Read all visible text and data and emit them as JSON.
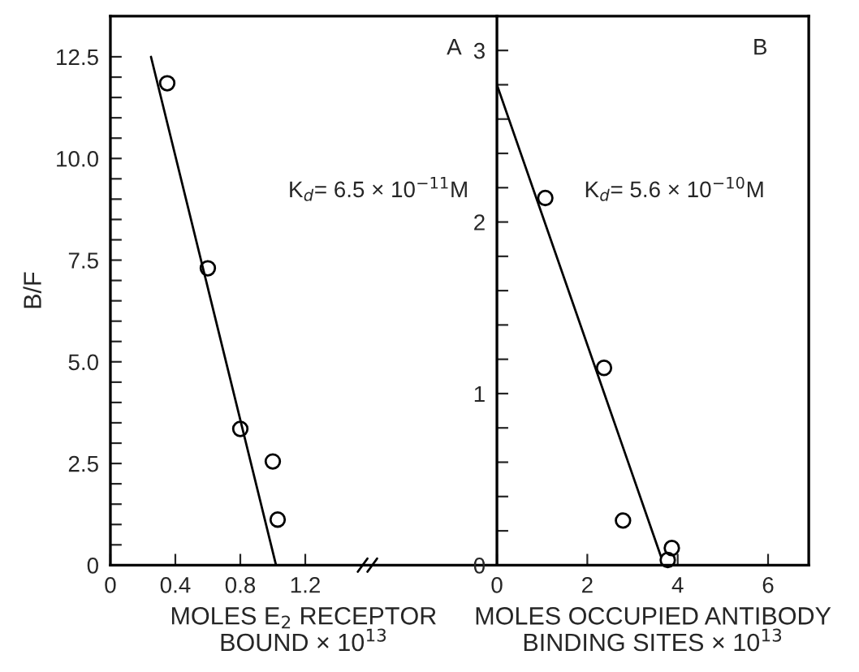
{
  "chart_data": [
    {
      "type": "scatter",
      "xlabel": "MOLES E$_{2}$ RECEPTOR\nBOUND × 10$^{13}$",
      "ylabel": "B/F",
      "annotations": [
        "A",
        "K$_{d}$= 6.5 × 10$^{−11}$M"
      ],
      "series": [
        {
          "color": "#000000",
          "marker": "circle",
          "x": [
            0.35,
            0.6,
            0.8,
            1.0,
            1.03
          ],
          "values": [
            11.85,
            7.3,
            3.35,
            2.55,
            1.12
          ]
        },
        {
          "type": "line",
          "color": "#000000",
          "marker": "none",
          "line_style": "solid",
          "x": [
            0.25,
            1.02
          ],
          "values": [
            12.5,
            0
          ]
        }
      ],
      "xlim": [
        0,
        2.38
      ],
      "ylim": [
        0,
        13.5
      ],
      "xticks": [
        0,
        0.4,
        0.8,
        1.2
      ],
      "yticks": [
        0,
        {
          "value": 0.5,
          "label": null
        },
        {
          "value": 1,
          "label": null
        },
        {
          "value": 1.5,
          "label": null
        },
        {
          "value": 2,
          "label": null
        },
        {
          "value": 2.5,
          "label": "2.5"
        },
        {
          "value": 3,
          "label": null
        },
        {
          "value": 3.5,
          "label": null
        },
        {
          "value": 4,
          "label": null
        },
        {
          "value": 4.5,
          "label": null
        },
        {
          "value": 5,
          "label": "5.0"
        },
        {
          "value": 5.5,
          "label": null
        },
        {
          "value": 6,
          "label": null
        },
        {
          "value": 6.5,
          "label": null
        },
        {
          "value": 7,
          "label": null
        },
        {
          "value": 7.5,
          "label": "7.5"
        },
        {
          "value": 8,
          "label": null
        },
        {
          "value": 8.5,
          "label": null
        },
        {
          "value": 9,
          "label": null
        },
        {
          "value": 9.5,
          "label": null
        },
        {
          "value": 10,
          "label": "10.0"
        },
        {
          "value": 10.5,
          "label": null
        },
        {
          "value": 11,
          "label": null
        },
        {
          "value": 11.5,
          "label": null
        },
        {
          "value": 12,
          "label": null
        },
        {
          "value": 12.5,
          "label": "12.5"
        }
      ],
      "grid": false,
      "legend": false
    },
    {
      "type": "scatter",
      "xlabel": "MOLES OCCUPIED ANTIBODY\nBINDING SITES × 10$^{13}$",
      "annotations": [
        "B",
        "K$_{d}$= 5.6 × 10$^{−10}$M"
      ],
      "series": [
        {
          "color": "#000000",
          "marker": "circle",
          "x": [
            1.07,
            2.37,
            2.79,
            3.78,
            3.87
          ],
          "values": [
            2.14,
            1.15,
            0.26,
            0.03,
            0.1
          ]
        },
        {
          "type": "line",
          "color": "#000000",
          "marker": "none",
          "line_style": "solid",
          "x": [
            0,
            3.63
          ],
          "values": [
            2.8,
            0.05
          ]
        }
      ],
      "xlim": [
        0,
        6.9
      ],
      "ylim": [
        0,
        3.2
      ],
      "xticks": [
        0,
        2,
        4,
        6
      ],
      "yticks": [
        0,
        {
          "value": 0.2,
          "label": null
        },
        {
          "value": 0.4,
          "label": null
        },
        {
          "value": 0.6,
          "label": null
        },
        {
          "value": 0.8,
          "label": null
        },
        1,
        {
          "value": 1.2,
          "label": null
        },
        {
          "value": 1.4,
          "label": null
        },
        {
          "value": 1.6,
          "label": null
        },
        {
          "value": 1.8,
          "label": null
        },
        2,
        {
          "value": 2.2,
          "label": null
        },
        {
          "value": 2.4,
          "label": null
        },
        {
          "value": 2.6,
          "label": null
        },
        {
          "value": 2.8,
          "label": null
        },
        3
      ],
      "grid": false,
      "legend": false
    }
  ]
}
